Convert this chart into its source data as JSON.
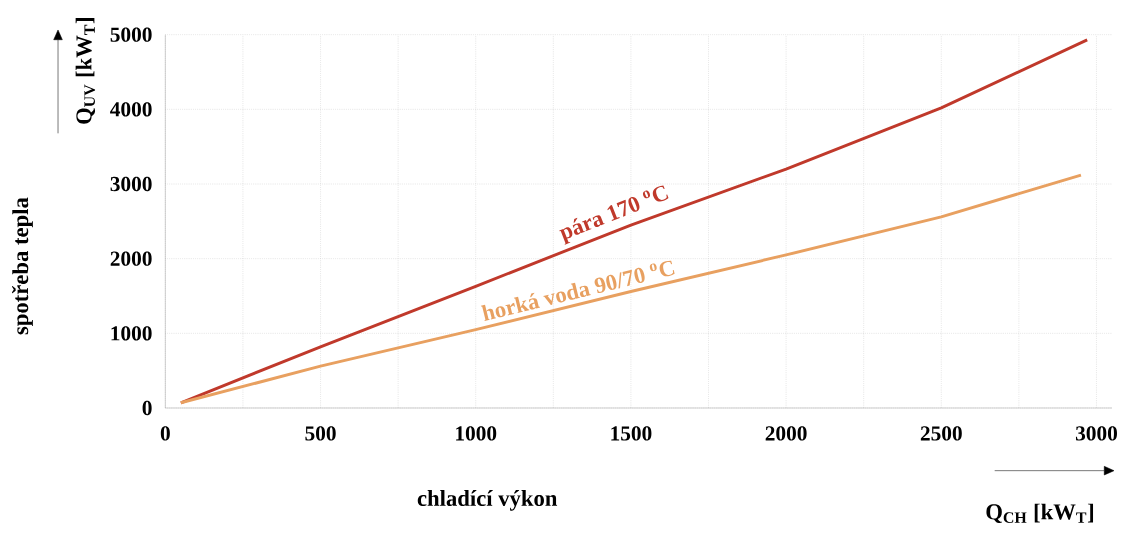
{
  "chart_data": {
    "type": "line",
    "xlabel": "chladící výkon",
    "ylabel": "spotřeba tepla",
    "annotations": [
      "Q$_{CH}$ [kW$_{T}$]",
      "Q$_{UV}$ [kW$_{T}$]"
    ],
    "xlim": [
      0,
      3050
    ],
    "ylim": [
      0,
      5000
    ],
    "xticks": [
      0,
      500,
      1000,
      1500,
      2000,
      2500,
      3000
    ],
    "yticks": [
      0,
      1000,
      2000,
      3000,
      4000,
      5000
    ],
    "grid": true,
    "marker": "none",
    "line_style": "solid",
    "series": [
      {
        "name": "pára 170 $^{o}$C",
        "color": "#c0392b",
        "x": [
          50,
          500,
          1000,
          1500,
          2000,
          2500,
          2970
        ],
        "values": [
          70,
          820,
          1630,
          2450,
          3200,
          4020,
          4930
        ]
      },
      {
        "name": "horká voda 90/70 $^{o}$C",
        "color": "#e8a060",
        "x": [
          50,
          500,
          1000,
          1500,
          2000,
          2500,
          2950
        ],
        "values": [
          70,
          560,
          1050,
          1560,
          2050,
          2560,
          3120
        ]
      }
    ]
  }
}
